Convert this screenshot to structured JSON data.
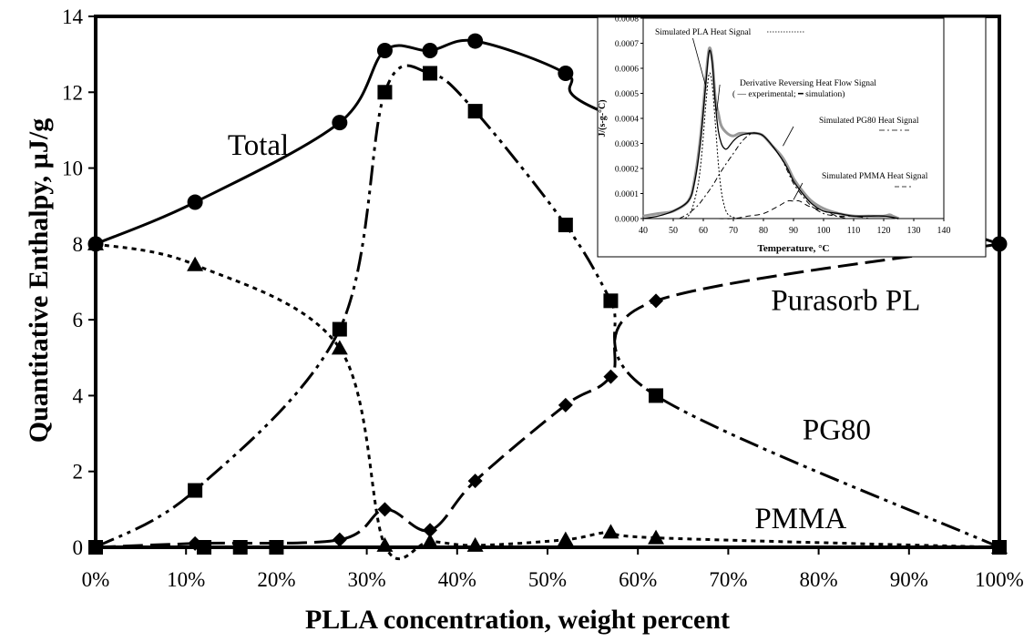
{
  "chart_data": [
    {
      "type": "line",
      "title": "",
      "xlabel": "PLLA concentration, weight percent",
      "ylabel": "Quantitative Enthalpy, µJ/g",
      "xlim": [
        0,
        100
      ],
      "ylim": [
        0,
        14
      ],
      "x_ticks": [
        0,
        10,
        20,
        30,
        40,
        50,
        60,
        70,
        80,
        90,
        100
      ],
      "x_tick_labels": [
        "0%",
        "10%",
        "20%",
        "30%",
        "40%",
        "50%",
        "60%",
        "70%",
        "80%",
        "90%",
        "100%"
      ],
      "y_ticks": [
        0,
        2,
        4,
        6,
        8,
        10,
        12,
        14
      ],
      "y_tick_labels": [
        "0",
        "2",
        "4",
        "6",
        "8",
        "10",
        "12",
        "14"
      ],
      "grid": false,
      "legend": "none",
      "series": [
        {
          "name": "Total",
          "marker": "circle",
          "line_style": "solid",
          "x": [
            0,
            11,
            27,
            32,
            37,
            42,
            52,
            57,
            100
          ],
          "y": [
            8.0,
            9.1,
            11.2,
            13.1,
            13.1,
            13.35,
            12.5,
            11.4,
            8.0
          ]
        },
        {
          "name": "PG80",
          "marker": "square",
          "line_style": "dash-dot-dot",
          "x": [
            0,
            11,
            27,
            32,
            37,
            42,
            52,
            57,
            62,
            100
          ],
          "y": [
            0.0,
            1.5,
            5.75,
            12.0,
            12.5,
            11.5,
            8.5,
            6.5,
            4.0,
            0.0
          ]
        },
        {
          "name": "Purasorb PL",
          "marker": "diamond",
          "line_style": "long-dash",
          "x": [
            0,
            11,
            27,
            32,
            37,
            42,
            52,
            57,
            62,
            100
          ],
          "y": [
            0.0,
            0.1,
            0.2,
            1.0,
            0.45,
            1.75,
            3.75,
            4.5,
            6.5,
            8.0
          ]
        },
        {
          "name": "PMMA",
          "marker": "triangle",
          "line_style": "dotted",
          "x": [
            0,
            11,
            27,
            32,
            37,
            42,
            52,
            57,
            62,
            100
          ],
          "y": [
            8.0,
            7.45,
            5.25,
            0.05,
            0.15,
            0.05,
            0.2,
            0.4,
            0.25,
            0.0
          ]
        }
      ],
      "extra_markers": {
        "squares": [
          [
            12,
            0
          ],
          [
            16,
            0
          ],
          [
            20,
            0
          ]
        ]
      },
      "annotations": [
        {
          "text": "Total",
          "x": 18,
          "y": 10.35
        },
        {
          "text": "Purasorb PL",
          "x": 83,
          "y": 6.25
        },
        {
          "text": "PG80",
          "x": 82,
          "y": 2.85
        },
        {
          "text": "PMMA",
          "x": 78,
          "y": 0.5
        }
      ]
    },
    {
      "type": "line",
      "title": "",
      "xlabel": "Temperature, °C",
      "ylabel": "J/(s-g-°C)",
      "xlim": [
        40,
        140
      ],
      "ylim": [
        0,
        0.0008
      ],
      "x_ticks": [
        40,
        50,
        60,
        70,
        80,
        90,
        100,
        110,
        120,
        130,
        140
      ],
      "x_tick_labels": [
        "40",
        "50",
        "60",
        "70",
        "80",
        "90",
        "100",
        "110",
        "120",
        "130",
        "140"
      ],
      "y_ticks": [
        0,
        0.0001,
        0.0002,
        0.0003,
        0.0004,
        0.0005,
        0.0006,
        0.0007,
        0.0008
      ],
      "y_tick_labels": [
        "0.0000",
        "0.0001",
        "0.0002",
        "0.0003",
        "0.0004",
        "0.0005",
        "0.0006",
        "0.0007",
        "0.0008"
      ],
      "grid": false,
      "legend": "none",
      "series": [
        {
          "name": "experimental",
          "line_style": "thick-grey",
          "color": "#999999",
          "x": [
            40,
            45,
            50,
            55,
            57,
            59,
            61,
            62,
            63,
            64,
            65,
            66,
            68,
            70,
            72,
            75,
            78,
            80,
            83,
            86,
            88,
            90,
            93,
            96,
            100,
            105,
            110,
            115,
            120,
            122,
            123,
            125
          ],
          "y": [
            1e-05,
            2e-05,
            3e-05,
            7e-05,
            0.00015,
            0.00032,
            0.00058,
            0.00068,
            0.00063,
            0.00048,
            0.00042,
            0.00037,
            0.00034,
            0.00033,
            0.00034,
            0.00034,
            0.00034,
            0.00033,
            0.00029,
            0.00025,
            0.00021,
            0.00016,
            0.00011,
            7e-05,
            4e-05,
            2e-05,
            1e-05,
            1e-05,
            1e-05,
            1.5e-05,
            1e-05,
            0.0
          ]
        },
        {
          "name": "simulation",
          "line_style": "solid-black",
          "color": "#000000",
          "x": [
            40,
            45,
            50,
            55,
            57,
            59,
            61,
            62,
            63,
            64,
            65,
            66,
            67,
            68,
            70,
            72,
            75,
            78,
            80,
            83,
            86,
            88,
            90,
            93,
            96,
            100,
            105,
            110,
            115,
            120,
            125
          ],
          "y": [
            0.0,
            1e-05,
            3e-05,
            7e-05,
            0.00014,
            0.0003,
            0.00056,
            0.00067,
            0.00062,
            0.00046,
            0.00035,
            0.0003,
            0.00028,
            0.00028,
            0.00031,
            0.00033,
            0.00034,
            0.00034,
            0.00033,
            0.00029,
            0.00024,
            0.0002,
            0.00015,
            0.0001,
            6e-05,
            3e-05,
            2e-05,
            1e-05,
            1e-05,
            1e-05,
            0.0
          ]
        },
        {
          "name": "Simulated PLA Heat Signal",
          "line_style": "dotted",
          "x": [
            54,
            56,
            58,
            59,
            60,
            61,
            62,
            63,
            64,
            65,
            66,
            67,
            68,
            69,
            71
          ],
          "y": [
            0.0,
            3e-05,
            0.00012,
            0.0002,
            0.00033,
            0.00048,
            0.00058,
            0.00053,
            0.00038,
            0.00022,
            0.00011,
            5e-05,
            2e-05,
            1e-05,
            0.0
          ]
        },
        {
          "name": "Simulated PG80 Heat Signal",
          "line_style": "dash-dot",
          "x": [
            52,
            55,
            58,
            60,
            63,
            66,
            70,
            73,
            76,
            78,
            80,
            83,
            86,
            88,
            90,
            93,
            96,
            100,
            104,
            108
          ],
          "y": [
            0.0,
            2e-05,
            5e-05,
            8e-05,
            0.00013,
            0.00019,
            0.00026,
            0.00031,
            0.00034,
            0.00034,
            0.00033,
            0.00029,
            0.00024,
            0.00019,
            0.00014,
            9e-05,
            5e-05,
            2e-05,
            1e-05,
            0.0
          ]
        },
        {
          "name": "Simulated PMMA Heat Signal",
          "line_style": "dashed",
          "x": [
            65,
            70,
            75,
            80,
            85,
            88,
            90,
            92,
            95,
            100,
            105,
            110,
            115
          ],
          "y": [
            0.0,
            0.0,
            1e-05,
            2e-05,
            5e-05,
            7e-05,
            7e-05,
            7e-05,
            5e-05,
            3e-05,
            1e-05,
            1e-05,
            0.0
          ]
        }
      ],
      "annotations": [
        {
          "text": "Simulated PLA Heat Signal"
        },
        {
          "text": "Derivative Reversing Heat Flow Signal"
        },
        {
          "text": "( — experimental;  ━ simulation)"
        },
        {
          "text": "Simulated PG80 Heat Signal"
        },
        {
          "text": "Simulated PMMA Heat Signal"
        }
      ]
    }
  ]
}
